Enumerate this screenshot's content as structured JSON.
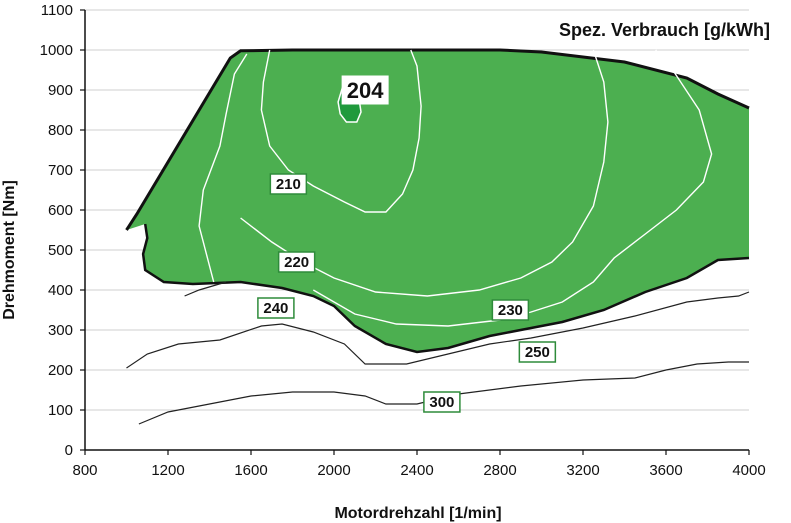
{
  "chart_data": {
    "type": "contour",
    "title": "Spez. Verbrauch [g/kWh]",
    "xlabel": "Motordrehzahl [1/min]",
    "ylabel": "Drehmoment [Nm]",
    "xlim": [
      800,
      4000
    ],
    "ylim": [
      0,
      1100
    ],
    "x_ticks": [
      800,
      1200,
      1600,
      2000,
      2400,
      2800,
      3200,
      3600,
      4000
    ],
    "y_ticks": [
      0,
      100,
      200,
      300,
      400,
      500,
      600,
      700,
      800,
      900,
      1000,
      1100
    ],
    "colors": {
      "fill": "#4caf50",
      "core": "#1f9a3c",
      "boundary": "#111111",
      "isoline_inside": "#ffffff",
      "isoline_outside": "#222222",
      "label_border": "#2e8b3a"
    },
    "full_load_curve": [
      [
        1000,
        550
      ],
      [
        1050,
        590
      ],
      [
        1500,
        980
      ],
      [
        1550,
        998
      ],
      [
        1800,
        1000
      ],
      [
        2800,
        1000
      ],
      [
        3000,
        995
      ],
      [
        3400,
        970
      ],
      [
        3700,
        930
      ],
      [
        3850,
        890
      ],
      [
        4000,
        855
      ]
    ],
    "low_boundary": [
      [
        1090,
        565
      ],
      [
        1100,
        530
      ],
      [
        1080,
        490
      ],
      [
        1090,
        450
      ],
      [
        1180,
        420
      ],
      [
        1320,
        415
      ],
      [
        1550,
        420
      ],
      [
        1750,
        405
      ],
      [
        1900,
        385
      ],
      [
        2000,
        360
      ],
      [
        2100,
        310
      ],
      [
        2250,
        265
      ],
      [
        2400,
        245
      ],
      [
        2550,
        255
      ],
      [
        2750,
        285
      ],
      [
        2950,
        305
      ],
      [
        3100,
        320
      ],
      [
        3300,
        350
      ],
      [
        3500,
        395
      ],
      [
        3700,
        430
      ],
      [
        3850,
        475
      ],
      [
        4000,
        480
      ]
    ],
    "contours": [
      {
        "label": "204",
        "points": [
          [
            2020,
            870
          ],
          [
            2040,
            905
          ],
          [
            2080,
            910
          ],
          [
            2120,
            880
          ],
          [
            2130,
            845
          ],
          [
            2110,
            820
          ],
          [
            2060,
            820
          ],
          [
            2030,
            840
          ],
          [
            2020,
            870
          ]
        ]
      },
      {
        "label": "210",
        "points": [
          [
            1690,
            1000
          ],
          [
            1660,
            920
          ],
          [
            1650,
            850
          ],
          [
            1690,
            760
          ],
          [
            1780,
            700
          ],
          [
            1900,
            660
          ],
          [
            2050,
            620
          ],
          [
            2150,
            595
          ],
          [
            2250,
            595
          ],
          [
            2330,
            640
          ],
          [
            2380,
            700
          ],
          [
            2410,
            780
          ],
          [
            2420,
            860
          ],
          [
            2400,
            960
          ],
          [
            2370,
            1000
          ]
        ]
      },
      {
        "label": "220",
        "points": [
          [
            1420,
            420
          ],
          [
            1350,
            560
          ],
          [
            1370,
            650
          ],
          [
            1450,
            760
          ],
          [
            1480,
            840
          ],
          [
            1520,
            940
          ],
          [
            1580,
            990
          ]
        ]
      },
      {
        "label": "220",
        "points": [
          [
            1550,
            580
          ],
          [
            1700,
            520
          ],
          [
            1850,
            470
          ],
          [
            2000,
            430
          ],
          [
            2200,
            395
          ],
          [
            2450,
            385
          ],
          [
            2700,
            400
          ],
          [
            2900,
            430
          ],
          [
            3050,
            470
          ],
          [
            3150,
            520
          ],
          [
            3250,
            610
          ],
          [
            3300,
            720
          ],
          [
            3320,
            820
          ],
          [
            3300,
            920
          ],
          [
            3250,
            1000
          ]
        ]
      },
      {
        "label": "230",
        "points": [
          [
            1900,
            400
          ],
          [
            2100,
            340
          ],
          [
            2300,
            315
          ],
          [
            2550,
            310
          ],
          [
            2800,
            325
          ],
          [
            2950,
            345
          ],
          [
            3100,
            370
          ],
          [
            3250,
            420
          ],
          [
            3350,
            480
          ],
          [
            3500,
            540
          ],
          [
            3650,
            600
          ],
          [
            3780,
            670
          ],
          [
            3820,
            740
          ],
          [
            3760,
            850
          ],
          [
            3620,
            960
          ],
          [
            3550,
            1000
          ]
        ]
      },
      {
        "label": "240",
        "points": [
          [
            1280,
            385
          ],
          [
            1350,
            400
          ],
          [
            1480,
            420
          ]
        ]
      },
      {
        "label": "250",
        "points": [
          [
            1000,
            205
          ],
          [
            1100,
            240
          ],
          [
            1250,
            265
          ],
          [
            1450,
            275
          ],
          [
            1650,
            310
          ],
          [
            1750,
            315
          ],
          [
            1900,
            295
          ],
          [
            2050,
            265
          ],
          [
            2150,
            215
          ],
          [
            2350,
            215
          ],
          [
            2550,
            240
          ],
          [
            2750,
            265
          ],
          [
            2950,
            280
          ],
          [
            3200,
            305
          ],
          [
            3450,
            335
          ],
          [
            3700,
            370
          ],
          [
            3850,
            380
          ],
          [
            3950,
            385
          ],
          [
            4000,
            395
          ]
        ]
      },
      {
        "label": "300",
        "points": [
          [
            1060,
            65
          ],
          [
            1200,
            95
          ],
          [
            1400,
            115
          ],
          [
            1600,
            135
          ],
          [
            1800,
            145
          ],
          [
            2000,
            145
          ],
          [
            2150,
            135
          ],
          [
            2250,
            115
          ],
          [
            2400,
            115
          ],
          [
            2600,
            140
          ],
          [
            2900,
            160
          ],
          [
            3200,
            175
          ],
          [
            3450,
            180
          ],
          [
            3600,
            200
          ],
          [
            3750,
            215
          ],
          [
            3900,
            220
          ],
          [
            4000,
            220
          ]
        ]
      }
    ],
    "labels": [
      {
        "text": "204",
        "x": 2150,
        "y": 900,
        "large": true
      },
      {
        "text": "210",
        "x": 1780,
        "y": 665
      },
      {
        "text": "220",
        "x": 1820,
        "y": 470
      },
      {
        "text": "240",
        "x": 1720,
        "y": 355
      },
      {
        "text": "230",
        "x": 2850,
        "y": 350
      },
      {
        "text": "250",
        "x": 2980,
        "y": 245
      },
      {
        "text": "300",
        "x": 2520,
        "y": 120
      }
    ]
  }
}
